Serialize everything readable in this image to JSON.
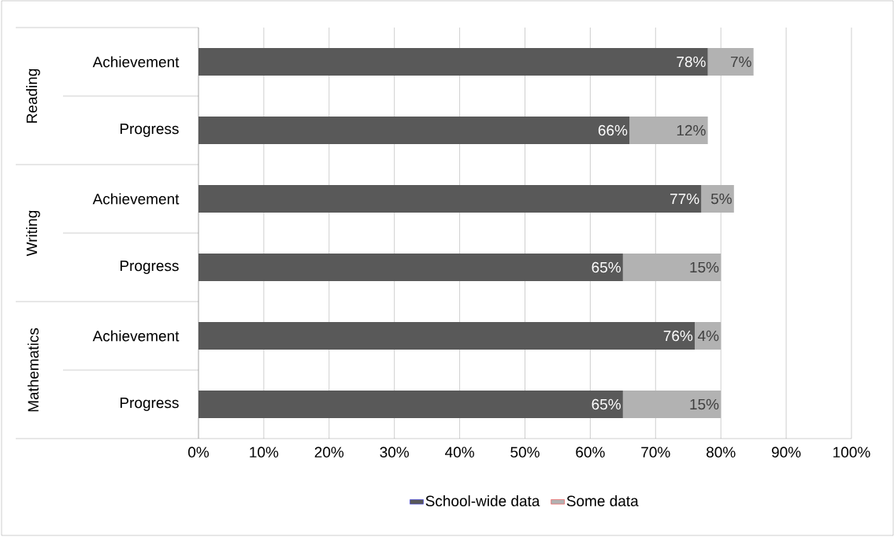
{
  "chart_data": {
    "type": "bar",
    "orientation": "horizontal",
    "stacked": true,
    "categories": [
      "Achievement",
      "Progress",
      "Achievement",
      "Progress",
      "Achievement",
      "Progress"
    ],
    "series": [
      {
        "name": "School-wide data",
        "color": "#595959",
        "values": [
          78,
          66,
          77,
          65,
          76,
          65
        ],
        "value_labels": [
          "78%",
          "66%",
          "77%",
          "65%",
          "76%",
          "65%"
        ]
      },
      {
        "name": "Some data",
        "color": "#b2b2b2",
        "values": [
          7,
          12,
          5,
          15,
          4,
          15
        ],
        "value_labels": [
          "7%",
          "12%",
          "5%",
          "15%",
          "4%",
          "15%"
        ]
      }
    ],
    "annotations": [
      "Reading",
      "Writing",
      "Mathematics"
    ],
    "xlim": [
      0,
      100
    ],
    "xticks": [
      {
        "value": 0,
        "label": "0%"
      },
      {
        "value": 10,
        "label": "10%"
      },
      {
        "value": 20,
        "label": "20%"
      },
      {
        "value": 30,
        "label": "30%"
      },
      {
        "value": 40,
        "label": "40%"
      },
      {
        "value": 50,
        "label": "50%"
      },
      {
        "value": 60,
        "label": "60%"
      },
      {
        "value": 70,
        "label": "70%"
      },
      {
        "value": 80,
        "label": "80%"
      },
      {
        "value": 90,
        "label": "90%"
      },
      {
        "value": 100,
        "label": "100%"
      }
    ],
    "grid": "x",
    "legend": "bottom"
  }
}
